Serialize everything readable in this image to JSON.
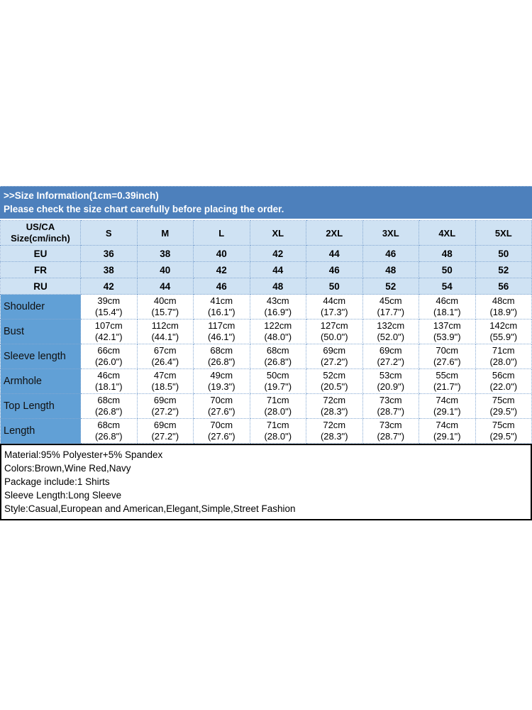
{
  "banner": {
    "line1": ">>Size Information(1cm=0.39inch)",
    "line2": "Please check the size chart carefully before placing the order."
  },
  "table": {
    "corner_lines": [
      "US/CA",
      "Size(cm/inch)"
    ],
    "sizes": [
      "S",
      "M",
      "L",
      "XL",
      "2XL",
      "3XL",
      "4XL",
      "5XL"
    ],
    "size_rows": [
      {
        "label": "EU",
        "values": [
          "36",
          "38",
          "40",
          "42",
          "44",
          "46",
          "48",
          "50"
        ]
      },
      {
        "label": "FR",
        "values": [
          "38",
          "40",
          "42",
          "44",
          "46",
          "48",
          "50",
          "52"
        ]
      },
      {
        "label": "RU",
        "values": [
          "42",
          "44",
          "46",
          "48",
          "50",
          "52",
          "54",
          "56"
        ]
      }
    ],
    "measure_rows": [
      {
        "label": "Shoulder",
        "values": [
          [
            "39cm",
            "(15.4\")"
          ],
          [
            "40cm",
            "(15.7\")"
          ],
          [
            "41cm",
            "(16.1\")"
          ],
          [
            "43cm",
            "(16.9\")"
          ],
          [
            "44cm",
            "(17.3\")"
          ],
          [
            "45cm",
            "(17.7\")"
          ],
          [
            "46cm",
            "(18.1\")"
          ],
          [
            "48cm",
            "(18.9\")"
          ]
        ]
      },
      {
        "label": "Bust",
        "values": [
          [
            "107cm",
            "(42.1\")"
          ],
          [
            "112cm",
            "(44.1\")"
          ],
          [
            "117cm",
            "(46.1\")"
          ],
          [
            "122cm",
            "(48.0\")"
          ],
          [
            "127cm",
            "(50.0\")"
          ],
          [
            "132cm",
            "(52.0\")"
          ],
          [
            "137cm",
            "(53.9\")"
          ],
          [
            "142cm",
            "(55.9\")"
          ]
        ]
      },
      {
        "label": "Sleeve length",
        "values": [
          [
            "66cm",
            "(26.0\")"
          ],
          [
            "67cm",
            "(26.4\")"
          ],
          [
            "68cm",
            "(26.8\")"
          ],
          [
            "68cm",
            "(26.8\")"
          ],
          [
            "69cm",
            "(27.2\")"
          ],
          [
            "69cm",
            "(27.2\")"
          ],
          [
            "70cm",
            "(27.6\")"
          ],
          [
            "71cm",
            "(28.0\")"
          ]
        ]
      },
      {
        "label": "Armhole",
        "values": [
          [
            "46cm",
            "(18.1\")"
          ],
          [
            "47cm",
            "(18.5\")"
          ],
          [
            "49cm",
            "(19.3\")"
          ],
          [
            "50cm",
            "(19.7\")"
          ],
          [
            "52cm",
            "(20.5\")"
          ],
          [
            "53cm",
            "(20.9\")"
          ],
          [
            "55cm",
            "(21.7\")"
          ],
          [
            "56cm",
            "(22.0\")"
          ]
        ]
      },
      {
        "label": "Top Length",
        "values": [
          [
            "68cm",
            "(26.8\")"
          ],
          [
            "69cm",
            "(27.2\")"
          ],
          [
            "70cm",
            "(27.6\")"
          ],
          [
            "71cm",
            "(28.0\")"
          ],
          [
            "72cm",
            "(28.3\")"
          ],
          [
            "73cm",
            "(28.7\")"
          ],
          [
            "74cm",
            "(29.1\")"
          ],
          [
            "75cm",
            "(29.5\")"
          ]
        ]
      },
      {
        "label": "Length",
        "values": [
          [
            "68cm",
            "(26.8\")"
          ],
          [
            "69cm",
            "(27.2\")"
          ],
          [
            "70cm",
            "(27.6\")"
          ],
          [
            "71cm",
            "(28.0\")"
          ],
          [
            "72cm",
            "(28.3\")"
          ],
          [
            "73cm",
            "(28.7\")"
          ],
          [
            "74cm",
            "(29.1\")"
          ],
          [
            "75cm",
            "(29.5\")"
          ]
        ]
      }
    ]
  },
  "details": {
    "lines": [
      "Material:95% Polyester+5% Spandex",
      "Colors:Brown,Wine Red,Navy",
      "Package include:1 Shirts",
      "Sleeve Length:Long Sleeve",
      "Style:Casual,European and American,Elegant,Simple,Street Fashion"
    ]
  },
  "colors": {
    "banner_blue": "#4d80bc",
    "light_blue_row": "#cfe2f3",
    "label_column_blue": "#61a0d6",
    "dotted_border_blue": "#84a8d2",
    "details_border": "#000000",
    "banner_text": "#ffffff",
    "body_text": "#000000"
  }
}
